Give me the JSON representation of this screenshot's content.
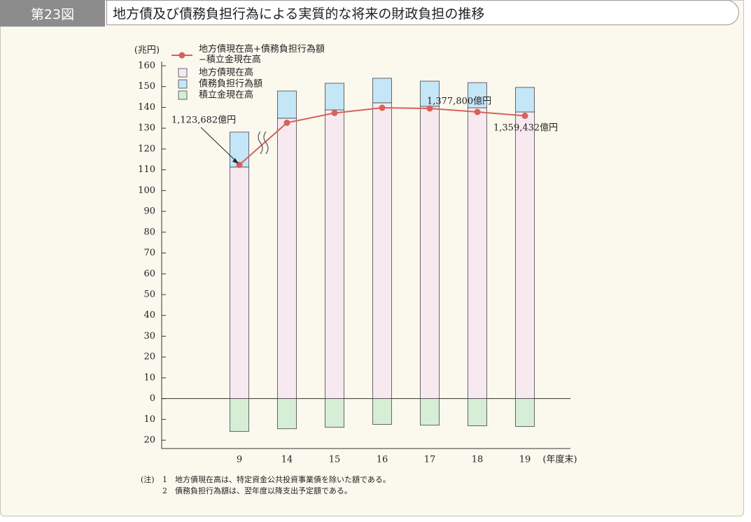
{
  "header": {
    "number": "第23図",
    "title": "地方債及び債務負担行為による実質的な将来の財政負担の推移"
  },
  "chart_data": {
    "type": "bar",
    "y_unit": "(兆円)",
    "x_label": "(年度末)",
    "categories": [
      "9",
      "14",
      "15",
      "16",
      "17",
      "18",
      "19"
    ],
    "ylim": [
      -24,
      160
    ],
    "yticks": [
      160,
      150,
      140,
      130,
      120,
      110,
      100,
      90,
      80,
      70,
      60,
      50,
      40,
      30,
      20,
      10,
      0,
      {
        "value": -10,
        "label": "10"
      },
      {
        "value": -20,
        "label": "20"
      }
    ],
    "series": [
      {
        "name": "地方債現在高",
        "color": "#f8e9f1",
        "values": [
          111.3,
          134.8,
          138.8,
          142.2,
          140.5,
          139.8,
          137.8
        ]
      },
      {
        "name": "債務負担行為額",
        "color": "#c4e6f7",
        "values": [
          16.8,
          13.1,
          12.8,
          11.8,
          12.1,
          12.1,
          11.8
        ]
      },
      {
        "name": "積立金現在高",
        "color": "#d6edd6",
        "values": [
          -15.8,
          -14.5,
          -13.8,
          -12.4,
          -12.8,
          -13.1,
          -13.4
        ]
      },
      {
        "name": "地方債現在高+債務負担行為額−積立金現在高",
        "type": "line",
        "color": "#d6625c",
        "values": [
          112.3682,
          132.6,
          137.3,
          139.8,
          139.5,
          137.78,
          135.9432
        ],
        "value_labels": [
          "1,123,682億円",
          null,
          null,
          null,
          null,
          "1,377,800億円",
          "1,359,432億円"
        ]
      }
    ]
  },
  "notes": {
    "label": "(注)",
    "items": [
      "1　地方債現在高は、特定資金公共投資事業債を除いた額である。",
      "2　債務負担行為額は、翌年度以降支出予定額である。"
    ]
  }
}
